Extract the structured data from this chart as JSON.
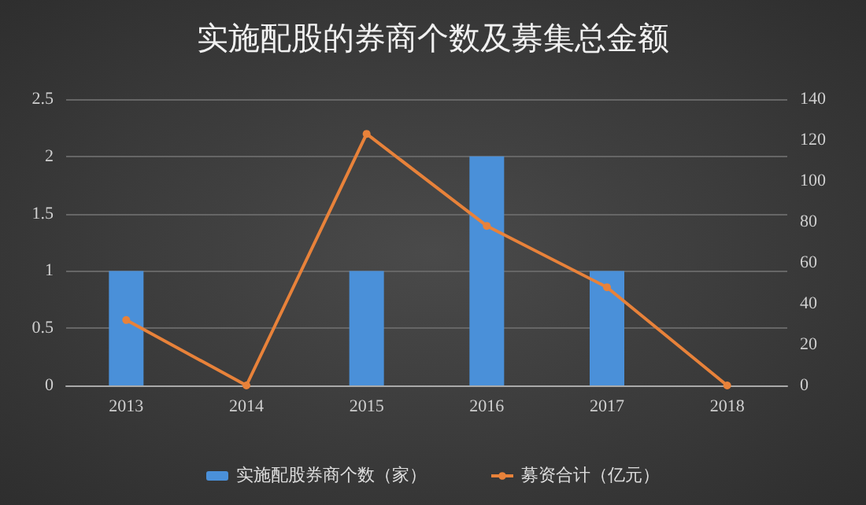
{
  "chart_data": {
    "type": "bar",
    "title": "实施配股的券商个数及募集总金额",
    "categories": [
      "2013",
      "2014",
      "2015",
      "2016",
      "2017",
      "2018"
    ],
    "series": [
      {
        "name": "实施配股券商个数（家）",
        "color": "#4a90d9",
        "values": [
          1,
          0,
          1,
          2,
          1,
          0
        ]
      },
      {
        "name": "募资合计（亿元）",
        "type": "line",
        "axis": "y2",
        "color": "#e8823a",
        "marker": "circle",
        "values": [
          32,
          0,
          123,
          78,
          48,
          0
        ]
      }
    ],
    "ylim": [
      0,
      2.5
    ],
    "yticks": [
      0,
      0.5,
      1,
      1.5,
      2,
      2.5
    ],
    "y2lim": [
      0,
      140
    ],
    "y2ticks": [
      0,
      20,
      40,
      60,
      80,
      100,
      120,
      140
    ],
    "grid": "y",
    "legend": "bottom"
  }
}
